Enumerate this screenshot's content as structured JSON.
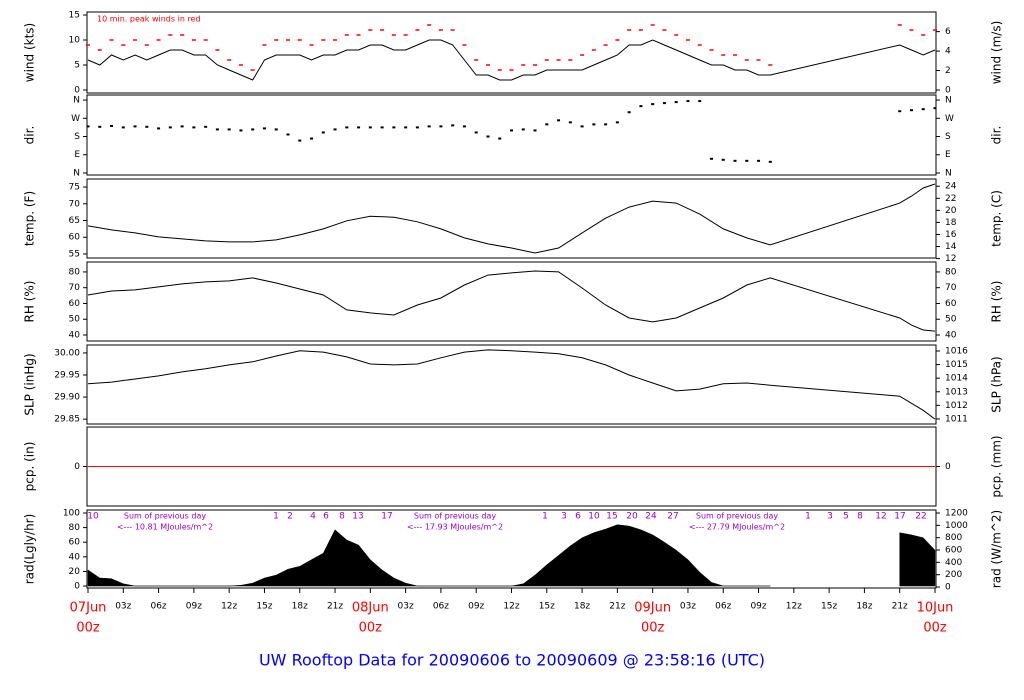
{
  "title": "UW Rooftop Data for 20090606  to  20090609 @ 23:58:16  (UTC)",
  "chart_data": [
    {
      "type": "line",
      "ylabel": "wind (kts)",
      "y2label": "wind (m/s)",
      "annotation": "10 min. peak winds in red",
      "xlim": [
        0,
        72
      ],
      "ylim": [
        -0.6,
        15.6
      ],
      "yticks": [
        0,
        5,
        10,
        15
      ],
      "y2lim": [
        -0.31,
        8.02
      ],
      "y2ticks": [
        0,
        2,
        4,
        6
      ],
      "x": [
        0,
        1,
        2,
        3,
        4,
        5,
        6,
        7,
        8,
        9,
        10,
        11,
        12,
        13,
        14,
        15,
        16,
        17,
        18,
        19,
        20,
        21,
        22,
        23,
        24,
        25,
        26,
        27,
        28,
        29,
        30,
        31,
        32,
        33,
        34,
        35,
        36,
        37,
        38,
        39,
        40,
        41,
        42,
        43,
        44,
        45,
        46,
        47,
        48,
        49,
        50,
        51,
        52,
        53,
        54,
        55,
        56,
        57,
        58,
        69,
        70,
        71,
        72
      ],
      "series": [
        {
          "color": "#000000",
          "style": "line",
          "values": [
            6,
            5,
            7,
            6,
            7,
            6,
            7,
            8,
            8,
            7,
            7,
            5,
            4,
            3,
            2,
            6,
            7,
            7,
            7,
            6,
            7,
            7,
            8,
            8,
            9,
            9,
            8,
            8,
            9,
            10,
            10,
            9,
            6,
            3,
            3,
            2,
            2,
            3,
            3,
            4,
            4,
            4,
            4,
            5,
            6,
            7,
            9,
            9,
            10,
            9,
            8,
            7,
            6,
            5,
            5,
            4,
            4,
            3,
            3,
            9,
            8,
            7,
            8
          ]
        },
        {
          "color": "#ff0000",
          "style": "dash",
          "values": [
            9,
            8,
            10,
            9,
            10,
            9,
            10,
            11,
            11,
            10,
            10,
            8,
            6,
            5,
            4,
            9,
            10,
            10,
            10,
            9,
            10,
            10,
            11,
            11,
            12,
            12,
            11,
            11,
            12,
            13,
            12,
            12,
            9,
            6,
            5,
            4,
            4,
            5,
            5,
            6,
            6,
            6,
            7,
            8,
            9,
            10,
            12,
            12,
            13,
            12,
            11,
            10,
            9,
            8,
            7,
            7,
            6,
            6,
            5,
            13,
            12,
            11,
            12
          ]
        }
      ]
    },
    {
      "type": "scatter",
      "ylabel": "dir.",
      "y2label": "dir.",
      "color": "#000000",
      "xlim": [
        0,
        72
      ],
      "ylim": [
        -10,
        385
      ],
      "yticks": [
        {
          "value": 0,
          "label": "N"
        },
        {
          "value": 90,
          "label": "E"
        },
        {
          "value": 180,
          "label": "S"
        },
        {
          "value": 270,
          "label": "W"
        },
        {
          "value": 360,
          "label": "N"
        }
      ],
      "y2lim": [
        -10,
        385
      ],
      "y2ticks": [
        {
          "value": 0,
          "label": "N"
        },
        {
          "value": 90,
          "label": "E"
        },
        {
          "value": 180,
          "label": "S"
        },
        {
          "value": 270,
          "label": "W"
        },
        {
          "value": 360,
          "label": "N"
        }
      ],
      "x": [
        0,
        1,
        2,
        3,
        4,
        5,
        6,
        7,
        8,
        9,
        10,
        11,
        12,
        13,
        14,
        15,
        16,
        17,
        18,
        19,
        20,
        21,
        22,
        23,
        24,
        25,
        26,
        27,
        28,
        29,
        30,
        31,
        32,
        33,
        34,
        35,
        36,
        37,
        38,
        39,
        40,
        41,
        42,
        43,
        44,
        45,
        46,
        47,
        48,
        49,
        50,
        51,
        52,
        53,
        54,
        55,
        56,
        57,
        58,
        69,
        70,
        71,
        72
      ],
      "values": [
        230,
        228,
        232,
        225,
        230,
        228,
        220,
        225,
        230,
        225,
        228,
        215,
        215,
        210,
        215,
        220,
        215,
        190,
        160,
        170,
        200,
        215,
        225,
        225,
        225,
        225,
        225,
        225,
        225,
        230,
        230,
        235,
        230,
        200,
        180,
        170,
        210,
        215,
        210,
        240,
        260,
        250,
        230,
        240,
        240,
        250,
        300,
        330,
        340,
        345,
        350,
        355,
        355,
        70,
        65,
        60,
        60,
        60,
        55,
        305,
        310,
        315,
        320
      ]
    },
    {
      "type": "line",
      "ylabel": "temp. (F)",
      "y2label": "temp. (C)",
      "xlim": [
        0,
        72
      ],
      "ylim": [
        53.8,
        77.4
      ],
      "yticks": [
        55,
        60,
        65,
        70,
        75
      ],
      "y2lim": [
        12.1,
        25.2
      ],
      "y2ticks": [
        12,
        14,
        16,
        18,
        20,
        22,
        24
      ],
      "x": [
        0,
        2,
        4,
        6,
        8,
        10,
        12,
        14,
        16,
        18,
        20,
        22,
        24,
        26,
        28,
        30,
        32,
        34,
        36,
        38,
        40,
        42,
        44,
        46,
        48,
        50,
        52,
        54,
        56,
        58,
        69,
        70,
        71,
        72
      ],
      "series": [
        {
          "color": "#000000",
          "style": "line",
          "values": [
            63.4,
            62.2,
            61.3,
            60.1,
            59.5,
            58.9,
            58.6,
            58.6,
            59.2,
            60.7,
            62.5,
            64.9,
            66.3,
            66.0,
            64.6,
            62.5,
            59.8,
            58.0,
            56.8,
            55.3,
            56.8,
            61.3,
            65.7,
            69.0,
            70.8,
            70.2,
            66.9,
            62.5,
            59.8,
            57.7,
            70.2,
            72.3,
            74.7,
            75.9
          ]
        }
      ]
    },
    {
      "type": "line",
      "ylabel": "RH (%)",
      "y2label": "RH (%)",
      "xlim": [
        0,
        72
      ],
      "ylim": [
        36.2,
        86.3
      ],
      "yticks": [
        40,
        50,
        60,
        70,
        80
      ],
      "y2lim": [
        36.2,
        86.3
      ],
      "y2ticks": [
        40,
        50,
        60,
        70,
        80
      ],
      "x": [
        0,
        2,
        4,
        6,
        8,
        10,
        12,
        14,
        16,
        18,
        20,
        22,
        24,
        26,
        28,
        30,
        32,
        34,
        36,
        38,
        40,
        42,
        44,
        46,
        48,
        50,
        52,
        54,
        56,
        58,
        69,
        70,
        71,
        72
      ],
      "series": [
        {
          "color": "#000000",
          "style": "line",
          "values": [
            65.4,
            67.9,
            68.6,
            70.5,
            72.4,
            73.7,
            74.3,
            76.2,
            73.0,
            69.2,
            65.4,
            55.9,
            54.0,
            52.7,
            59.0,
            63.5,
            71.7,
            78.0,
            79.4,
            80.6,
            80.0,
            69.8,
            59.0,
            50.8,
            48.3,
            50.8,
            57.1,
            63.5,
            71.7,
            76.2,
            50.8,
            46.3,
            43.2,
            42.5
          ]
        }
      ]
    },
    {
      "type": "line",
      "ylabel": "SLP (inHg)",
      "y2label": "SLP (hPa)",
      "xlim": [
        0,
        72
      ],
      "ylim": [
        29.839,
        30.018
      ],
      "yticks": [
        29.85,
        {
          "value": 29.9,
          "label": "29.90"
        },
        29.95,
        {
          "value": 30,
          "label": "30.00"
        }
      ],
      "y2lim": [
        1010.63,
        1016.44
      ],
      "y2ticks": [
        1011,
        1012,
        1013,
        1014,
        1015,
        1016
      ],
      "x": [
        0,
        2,
        4,
        6,
        8,
        10,
        12,
        14,
        16,
        18,
        20,
        22,
        24,
        26,
        28,
        30,
        32,
        34,
        36,
        38,
        40,
        42,
        44,
        46,
        48,
        50,
        52,
        54,
        56,
        58,
        69,
        70,
        71,
        72
      ],
      "series": [
        {
          "color": "#000000",
          "style": "line",
          "values": [
            29.93,
            29.934,
            29.941,
            29.948,
            29.957,
            29.964,
            29.973,
            29.98,
            29.993,
            30.005,
            30.002,
            29.991,
            29.975,
            29.973,
            29.975,
            29.989,
            30.002,
            30.007,
            30.005,
            30.002,
            29.998,
            29.989,
            29.973,
            29.95,
            29.932,
            29.914,
            29.918,
            29.93,
            29.932,
            29.927,
            29.902,
            29.886,
            29.87,
            29.85
          ]
        }
      ]
    },
    {
      "type": "line",
      "ylabel": "pcp. (in)",
      "y2label": "pcp. (mm)",
      "xlim": [
        0,
        72
      ],
      "ylim": [
        -1,
        1
      ],
      "yticks": [
        0
      ],
      "y2lim": [
        -25.4,
        25.4
      ],
      "y2ticks": [
        0
      ],
      "x": [
        0,
        72
      ],
      "series": [
        {
          "color": "#ff0000",
          "style": "line",
          "values": [
            0,
            0
          ]
        }
      ]
    },
    {
      "type": "area",
      "ylabel": "rad(Lgly/hr)",
      "y2label": "rad (W/m^2)",
      "color": "#000000",
      "xlim": [
        0,
        72
      ],
      "ylim": [
        -2.7,
        104.1
      ],
      "yticks": [
        0,
        20,
        40,
        60,
        80,
        100
      ],
      "y2lim": [
        -16,
        1249
      ],
      "y2ticks": [
        0,
        200,
        400,
        600,
        800,
        1000,
        1200
      ],
      "x": [
        0,
        1,
        2,
        3,
        4,
        5,
        6,
        7,
        8,
        9,
        10,
        11,
        12,
        13,
        14,
        15,
        16,
        17,
        18,
        19,
        20,
        21,
        22,
        23,
        24,
        25,
        26,
        27,
        28,
        29,
        30,
        31,
        32,
        33,
        34,
        35,
        36,
        37,
        38,
        39,
        40,
        41,
        42,
        43,
        44,
        45,
        46,
        47,
        48,
        49,
        50,
        51,
        52,
        53,
        54,
        55,
        56,
        57,
        58,
        59,
        60,
        61,
        62,
        63,
        64,
        65,
        66,
        67,
        68,
        69,
        70,
        71,
        72
      ],
      "values": [
        22,
        11,
        10,
        3,
        0,
        0,
        0,
        0,
        0,
        0,
        0,
        0,
        0,
        1,
        4,
        11,
        15,
        23,
        27,
        36,
        45,
        77,
        63,
        56,
        36,
        22,
        11,
        4,
        0,
        0,
        0,
        0,
        0,
        0,
        0,
        0,
        0,
        3,
        15,
        29,
        42,
        55,
        66,
        73,
        78,
        84,
        82,
        77,
        70,
        60,
        49,
        36,
        19,
        5,
        0,
        0,
        0,
        0,
        0,
        null,
        null,
        null,
        null,
        null,
        null,
        null,
        null,
        null,
        null,
        73,
        70,
        66,
        49
      ],
      "hour_labels": [
        "10",
        "1",
        "2",
        "4",
        "6",
        "8",
        "13",
        "17",
        "1",
        "3",
        "6",
        "10",
        "15",
        "20",
        "24",
        "27",
        "1",
        "3",
        "5",
        "8",
        "12",
        "17",
        "22"
      ],
      "sum_titles": [
        "Sum of previous day",
        "Sum of previous day",
        "Sum of previous day"
      ],
      "sum_texts": [
        "<--- 10.81 MJoules/m^2",
        "<--- 17.93 MJoules/m^2",
        "<--- 27.79 MJoules/m^2"
      ],
      "xticks": [
        {
          "value": 0,
          "label": "00z"
        },
        {
          "value": 3,
          "label": "03z"
        },
        {
          "value": 6,
          "label": "06z"
        },
        {
          "value": 9,
          "label": "09z"
        },
        {
          "value": 12,
          "label": "12z"
        },
        {
          "value": 15,
          "label": "15z"
        },
        {
          "value": 18,
          "label": "18z"
        },
        {
          "value": 21,
          "label": "21z"
        },
        {
          "value": 24,
          "label": "00z"
        },
        {
          "value": 27,
          "label": "03z"
        },
        {
          "value": 30,
          "label": "06z"
        },
        {
          "value": 33,
          "label": "09z"
        },
        {
          "value": 36,
          "label": "12z"
        },
        {
          "value": 39,
          "label": "15z"
        },
        {
          "value": 42,
          "label": "18z"
        },
        {
          "value": 45,
          "label": "21z"
        },
        {
          "value": 48,
          "label": "00z"
        },
        {
          "value": 51,
          "label": "03z"
        },
        {
          "value": 54,
          "label": "06z"
        },
        {
          "value": 57,
          "label": "09z"
        },
        {
          "value": 60,
          "label": "12z"
        },
        {
          "value": 63,
          "label": "15z"
        },
        {
          "value": 66,
          "label": "18z"
        },
        {
          "value": 69,
          "label": "21z"
        },
        {
          "value": 72,
          "label": "00z"
        }
      ],
      "x_day_labels": [
        {
          "value": 0,
          "label": "07Jun"
        },
        {
          "value": 24,
          "label": "08Jun"
        },
        {
          "value": 48,
          "label": "09Jun"
        },
        {
          "value": 72,
          "label": "10Jun"
        }
      ]
    }
  ]
}
